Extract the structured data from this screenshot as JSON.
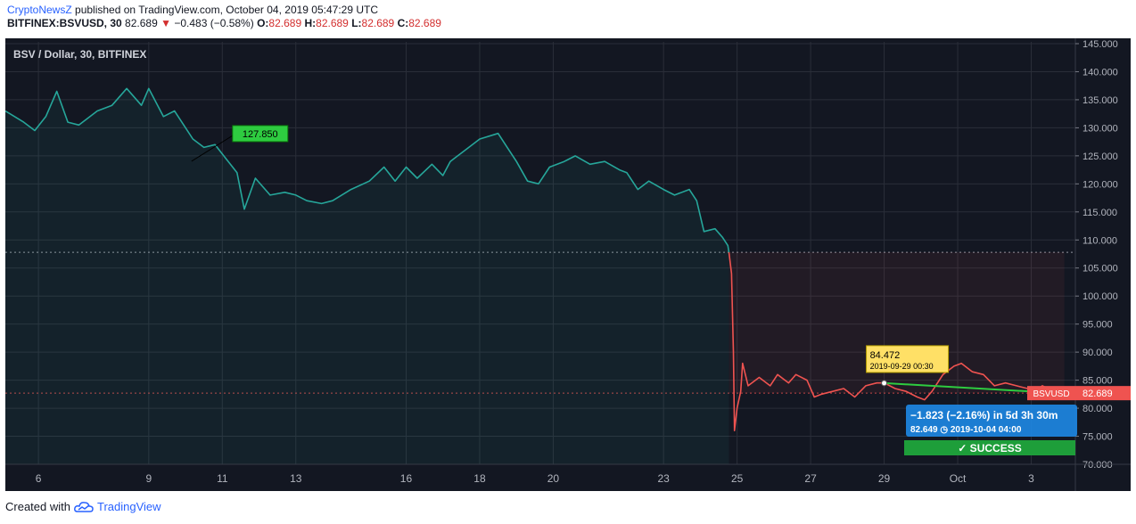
{
  "header": {
    "author": "CryptoNewsZ",
    "published": " published on TradingView.com, October 04, 2019 05:47:29 UTC",
    "symbol": "BITFINEX:BSVUSD, 30",
    "last": "82.689",
    "change": "−0.483 (−0.58%)",
    "ohlc_o_label": "O:",
    "ohlc_o": "82.689",
    "ohlc_h_label": "H:",
    "ohlc_h": "82.689",
    "ohlc_l_label": "L:",
    "ohlc_l": "82.689",
    "ohlc_c_label": "C:",
    "ohlc_c": "82.689"
  },
  "footer": {
    "created_with": "Created with",
    "brand": "TradingView"
  },
  "colors": {
    "up": "#26a69a",
    "down": "#ef5350",
    "background": "#131722",
    "grid": "#2a2e39",
    "axis_text": "#b2b5be",
    "accent_green": "#2ecc40",
    "badge_yellow": "#ffe066",
    "blue_box": "#1e88e5"
  },
  "chart_data": {
    "type": "line",
    "title": "BSV / Dollar, 30, BITFINEX",
    "ylim": [
      70,
      145
    ],
    "y_ticks": [
      "145.000",
      "140.000",
      "135.000",
      "130.000",
      "125.000",
      "120.000",
      "115.000",
      "110.000",
      "105.000",
      "100.000",
      "95.000",
      "90.000",
      "85.000",
      "80.000",
      "75.000",
      "70.000"
    ],
    "x_ticks": [
      "6",
      "9",
      "11",
      "13",
      "16",
      "18",
      "20",
      "23",
      "25",
      "27",
      "29",
      "Oct",
      "3"
    ],
    "x_tick_days": [
      6,
      9,
      11,
      13,
      16,
      18,
      20,
      23,
      25,
      27,
      29,
      31,
      33
    ],
    "x_range_days": [
      5.1,
      34.2
    ],
    "series": [
      {
        "color": "#26a69a",
        "points": [
          [
            5.1,
            133
          ],
          [
            5.6,
            131
          ],
          [
            5.9,
            129.5
          ],
          [
            6.2,
            132
          ],
          [
            6.5,
            136.5
          ],
          [
            6.8,
            131
          ],
          [
            7.1,
            130.5
          ],
          [
            7.6,
            133
          ],
          [
            8.0,
            134
          ],
          [
            8.4,
            137
          ],
          [
            8.8,
            134
          ],
          [
            9.0,
            137
          ],
          [
            9.4,
            132
          ],
          [
            9.7,
            133
          ],
          [
            10.0,
            130
          ],
          [
            10.2,
            128
          ],
          [
            10.5,
            126.5
          ],
          [
            10.8,
            127
          ],
          [
            11.1,
            124.5
          ],
          [
            11.4,
            122
          ],
          [
            11.6,
            115.5
          ],
          [
            11.9,
            121
          ],
          [
            12.3,
            118
          ],
          [
            12.7,
            118.5
          ],
          [
            13.0,
            118
          ],
          [
            13.3,
            117
          ],
          [
            13.7,
            116.5
          ],
          [
            14.0,
            117
          ],
          [
            14.5,
            119
          ],
          [
            15.0,
            120.5
          ],
          [
            15.4,
            123
          ],
          [
            15.7,
            120.5
          ],
          [
            16.0,
            123
          ],
          [
            16.3,
            121
          ],
          [
            16.7,
            123.5
          ],
          [
            17.0,
            121.5
          ],
          [
            17.2,
            124
          ],
          [
            17.6,
            126
          ],
          [
            18.0,
            128
          ],
          [
            18.5,
            129
          ],
          [
            18.8,
            126
          ],
          [
            19.0,
            124
          ],
          [
            19.3,
            120.5
          ],
          [
            19.6,
            120
          ],
          [
            19.9,
            123
          ],
          [
            20.3,
            124
          ],
          [
            20.6,
            125
          ],
          [
            21.0,
            123.5
          ],
          [
            21.4,
            124
          ],
          [
            21.8,
            122.5
          ],
          [
            22.0,
            122
          ],
          [
            22.3,
            119
          ],
          [
            22.6,
            120.5
          ],
          [
            23.0,
            119
          ],
          [
            23.3,
            118
          ],
          [
            23.7,
            119
          ],
          [
            23.9,
            117
          ],
          [
            24.1,
            111.5
          ],
          [
            24.4,
            112
          ],
          [
            24.6,
            110.5
          ],
          [
            24.75,
            109
          ],
          [
            24.78,
            107.8
          ]
        ]
      },
      {
        "color": "#ef5350",
        "points": [
          [
            24.78,
            107.8
          ],
          [
            24.85,
            104
          ],
          [
            24.9,
            90
          ],
          [
            24.93,
            76
          ],
          [
            25.0,
            80
          ],
          [
            25.1,
            83
          ],
          [
            25.15,
            88
          ],
          [
            25.3,
            84
          ],
          [
            25.6,
            85.5
          ],
          [
            25.9,
            84
          ],
          [
            26.1,
            86
          ],
          [
            26.4,
            84.5
          ],
          [
            26.6,
            86
          ],
          [
            26.9,
            85
          ],
          [
            27.1,
            82
          ],
          [
            27.3,
            82.5
          ],
          [
            27.6,
            83
          ],
          [
            27.9,
            83.5
          ],
          [
            28.2,
            82
          ],
          [
            28.5,
            84
          ],
          [
            28.8,
            84.5
          ],
          [
            29.0,
            84.5
          ],
          [
            29.3,
            83.5
          ],
          [
            29.6,
            83
          ],
          [
            29.9,
            82
          ],
          [
            30.1,
            81.5
          ],
          [
            30.3,
            83
          ],
          [
            30.6,
            86
          ],
          [
            30.9,
            87.5
          ],
          [
            31.1,
            88
          ],
          [
            31.4,
            86.5
          ],
          [
            31.7,
            86
          ],
          [
            32.0,
            84
          ],
          [
            32.3,
            84.5
          ],
          [
            32.6,
            84
          ],
          [
            32.9,
            83.5
          ],
          [
            33.1,
            83
          ],
          [
            33.3,
            84
          ],
          [
            33.6,
            83
          ],
          [
            33.9,
            82.689
          ]
        ]
      }
    ],
    "reference_lines": [
      {
        "value": 107.8,
        "color": "#b2b5be"
      },
      {
        "value": 82.689,
        "color": "#ef5350"
      }
    ],
    "annotations": {
      "callout_high": {
        "label": "127.850",
        "day": 10.6,
        "value": 127.85
      },
      "callout_point": {
        "label": "84.472",
        "date": "2019-09-29 00:30",
        "day": 29.0,
        "value": 84.472
      },
      "trend_line": {
        "from": [
          29.0,
          84.472
        ],
        "to": [
          33.9,
          82.649
        ]
      },
      "price_label": {
        "symbol": "BSVUSD",
        "value": "82.689"
      },
      "measure": {
        "text": "−1.823 (−2.16%) in 5d 3h 30m",
        "sub_price": "82.649",
        "sub_date": "2019-10-04  04:00"
      },
      "success": "✓ SUCCESS"
    }
  }
}
